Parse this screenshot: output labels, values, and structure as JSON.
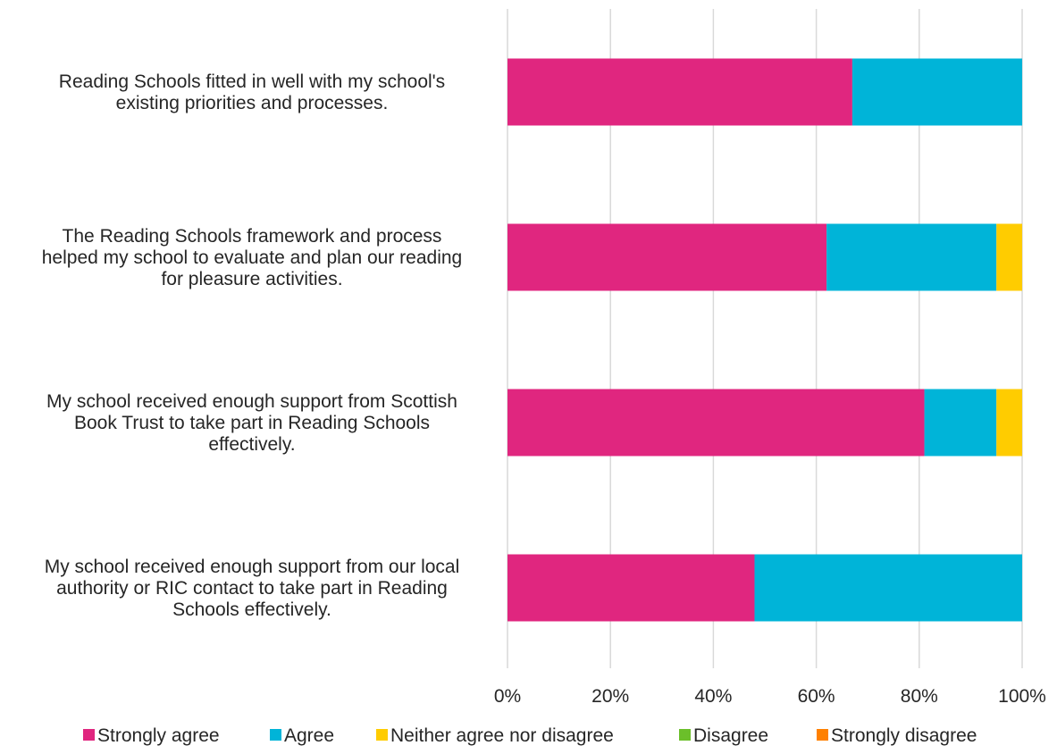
{
  "chart_data": {
    "type": "bar",
    "orientation": "horizontal",
    "stacked": true,
    "categories": [
      [
        "Reading Schools fitted in well with my school's",
        "existing priorities and processes."
      ],
      [
        "The Reading Schools framework and process",
        "helped my school to evaluate and plan our reading",
        "for pleasure activities."
      ],
      [
        "My school received enough support from Scottish",
        "Book Trust to take part in Reading Schools",
        "effectively."
      ],
      [
        "My school received enough support from our local",
        "authority or RIC contact to take part in Reading",
        "Schools effectively."
      ]
    ],
    "series": [
      {
        "name": "Strongly agree",
        "color": "#E0267F",
        "values": [
          67,
          62,
          81,
          48
        ]
      },
      {
        "name": "Agree",
        "color": "#00B4D8",
        "values": [
          33,
          33,
          14,
          52
        ]
      },
      {
        "name": "Neither agree nor disagree",
        "color": "#FFCC00",
        "values": [
          0,
          5,
          5,
          0
        ]
      },
      {
        "name": "Disagree",
        "color": "#6BBF2A",
        "values": [
          0,
          0,
          0,
          0
        ]
      },
      {
        "name": "Strongly disagree",
        "color": "#FF8000",
        "values": [
          0,
          0,
          0,
          0
        ]
      }
    ],
    "xlim": [
      0,
      100
    ],
    "xticks": [
      "0%",
      "20%",
      "40%",
      "60%",
      "80%",
      "100%"
    ],
    "grid": true,
    "gridline_color": "#D9D9D9",
    "legend_position": "bottom"
  }
}
